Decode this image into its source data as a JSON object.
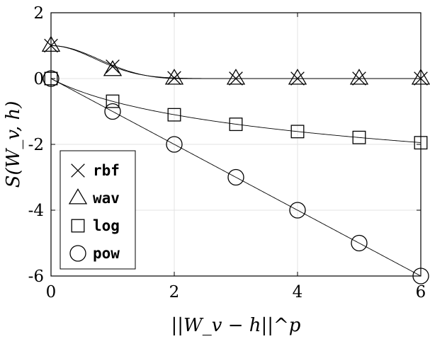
{
  "chart_data": {
    "type": "line",
    "xlabel": "||W_v − h||^p",
    "ylabel": "S(W_v, h)",
    "xlim": [
      0,
      6
    ],
    "ylim": [
      -6,
      2
    ],
    "x_ticks": [
      0,
      2,
      4,
      6
    ],
    "y_ticks": [
      2,
      0,
      -2,
      -4,
      -6
    ],
    "x_tick_labels": [
      "0",
      "2",
      "4",
      "6"
    ],
    "y_tick_labels": [
      "2",
      "0",
      "-2",
      "-4",
      "-6"
    ],
    "grid": true,
    "legend_position": "bottom-left",
    "series": [
      {
        "name": "rbf",
        "marker": "x",
        "x": [
          0,
          1,
          2,
          3,
          4,
          5,
          6
        ],
        "y": [
          1.0,
          0.368,
          0.018,
          0.0001,
          0.0,
          0.0,
          0.0
        ]
      },
      {
        "name": "wav",
        "marker": "triangle",
        "x": [
          0,
          1,
          2,
          3,
          4,
          5,
          6
        ],
        "y": [
          1.0,
          0.26,
          0.0,
          0.0,
          0.0,
          0.0,
          0.0
        ]
      },
      {
        "name": "log",
        "marker": "square",
        "x": [
          0,
          1,
          2,
          3,
          4,
          5,
          6
        ],
        "y": [
          0,
          -0.69,
          -1.1,
          -1.39,
          -1.61,
          -1.79,
          -1.95
        ]
      },
      {
        "name": "pow",
        "marker": "circle",
        "x": [
          0,
          1,
          2,
          3,
          4,
          5,
          6
        ],
        "y": [
          0,
          -1,
          -2,
          -3,
          -4,
          -5,
          -6
        ]
      }
    ]
  }
}
